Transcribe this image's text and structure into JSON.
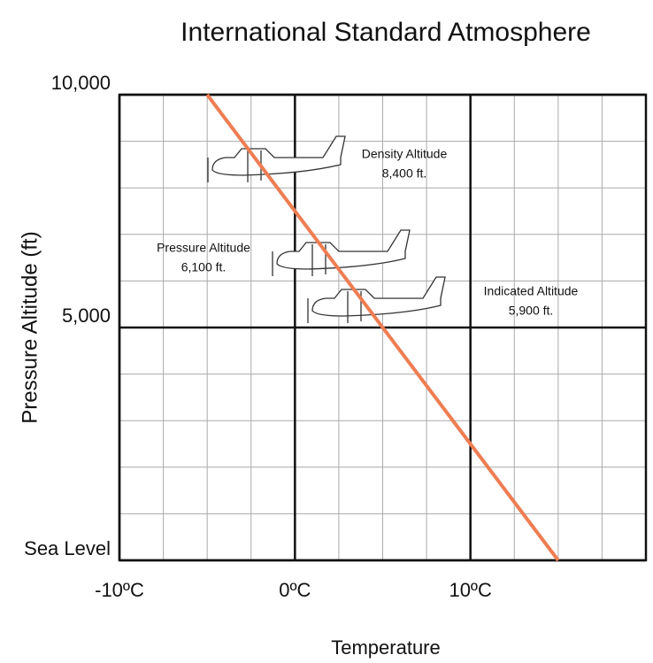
{
  "chart_data": {
    "type": "line",
    "title": "International Standard Atmosphere",
    "x_label": "Temperature",
    "y_label": "Pressure Altitude (ft)",
    "x": [
      -5,
      15
    ],
    "series": [
      {
        "color": "#ef7d52",
        "values": [
          10000,
          0
        ]
      }
    ],
    "xlim": [
      -10,
      20
    ],
    "ylim": [
      0,
      10000
    ],
    "xticks": [
      {
        "value": -10,
        "label": "-10ºC"
      },
      {
        "value": 0,
        "label": "0ºC"
      },
      {
        "value": 10,
        "label": "10ºC"
      }
    ],
    "yticks": [
      {
        "value": 0,
        "label": "Sea Level"
      },
      {
        "value": 5000,
        "label": "5,000"
      },
      {
        "value": 10000,
        "label": "10,000"
      }
    ],
    "minor_xticks": [
      -7.5,
      -5,
      -2.5,
      2.5,
      5,
      7.5,
      12.5,
      15,
      17.5
    ],
    "minor_yticks": [
      1000,
      2000,
      3000,
      4000,
      6000,
      7000,
      8000,
      9000
    ],
    "grid": true,
    "annotations": [
      {
        "title": "Density Altitude",
        "text": "8,400 ft."
      },
      {
        "title": "Pressure Altitude",
        "text": "6,100 ft."
      },
      {
        "title": "Indicated Altitude",
        "text": "5,900 ft."
      }
    ]
  }
}
